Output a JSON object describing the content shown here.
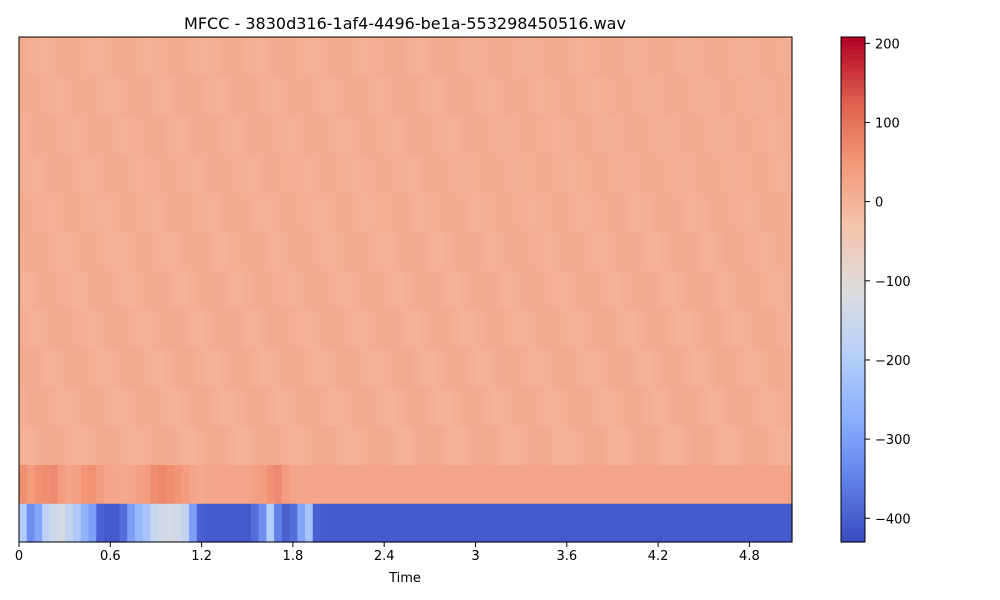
{
  "chart_data": {
    "type": "heatmap",
    "title": "MFCC - 3830d316-1af4-4496-be1a-553298450516.wav",
    "xlabel": "Time",
    "ylabel": "",
    "xlim": [
      0,
      5.08
    ],
    "x_ticks": [
      0,
      0.6,
      1.2,
      1.8,
      2.4,
      3,
      3.6,
      4.2,
      4.8
    ],
    "x_tick_labels": [
      "0",
      "0.6",
      "1.2",
      "1.8",
      "2.4",
      "3",
      "3.6",
      "4.2",
      "4.8"
    ],
    "n_coefficients": 13,
    "n_frames": 100,
    "colormap": "coolwarm",
    "colorbar": {
      "vmin": -430,
      "vmax": 208,
      "ticks": [
        200,
        100,
        0,
        -100,
        -200,
        -300,
        -400
      ],
      "tick_labels": [
        "200",
        "100",
        "0",
        "−100",
        "−200",
        "−300",
        "−400"
      ]
    },
    "coefficient_0_values": [
      -200,
      -330,
      -290,
      -180,
      -150,
      -130,
      -170,
      -210,
      -260,
      -300,
      -400,
      -410,
      -410,
      -380,
      -300,
      -250,
      -220,
      -160,
      -140,
      -130,
      -140,
      -170,
      -300,
      -400,
      -410,
      -410,
      -410,
      -410,
      -410,
      -410,
      -380,
      -330,
      -200,
      -350,
      -400,
      -380,
      -290,
      -220,
      -400,
      -410,
      -410,
      -410,
      -410,
      -410,
      -410,
      -410,
      -410,
      -410,
      -410,
      -410,
      -410,
      -410,
      -410,
      -410,
      -410,
      -410,
      -410,
      -410,
      -410,
      -410,
      -410,
      -410,
      -410,
      -410,
      -410,
      -410,
      -410,
      -410,
      -410,
      -410,
      -410,
      -410,
      -410,
      -410,
      -410,
      -410,
      -410,
      -410,
      -410,
      -410,
      -410,
      -410,
      -410,
      -410,
      -410,
      -410,
      -410,
      -410,
      -410,
      -410,
      -410,
      -410,
      -410,
      -410,
      -410,
      -410,
      -410,
      -410,
      -410,
      -410
    ],
    "coefficient_1_values": [
      65,
      45,
      60,
      65,
      70,
      45,
      30,
      35,
      55,
      60,
      40,
      30,
      25,
      20,
      25,
      35,
      45,
      65,
      75,
      65,
      55,
      45,
      30,
      20,
      25,
      30,
      30,
      30,
      30,
      30,
      35,
      40,
      60,
      70,
      45,
      30,
      25,
      30,
      30,
      30,
      30,
      30,
      30,
      30,
      30,
      30,
      30,
      30,
      30,
      30,
      30,
      30,
      30,
      30,
      30,
      30,
      30,
      30,
      30,
      30,
      30,
      30,
      30,
      30,
      30,
      30,
      30,
      30,
      30,
      30,
      30,
      30,
      30,
      30,
      30,
      30,
      30,
      30,
      30,
      30,
      30,
      30,
      30,
      30,
      30,
      30,
      30,
      30,
      30,
      30,
      30,
      30,
      30,
      30,
      30,
      30,
      30,
      30,
      30,
      30
    ]
  }
}
